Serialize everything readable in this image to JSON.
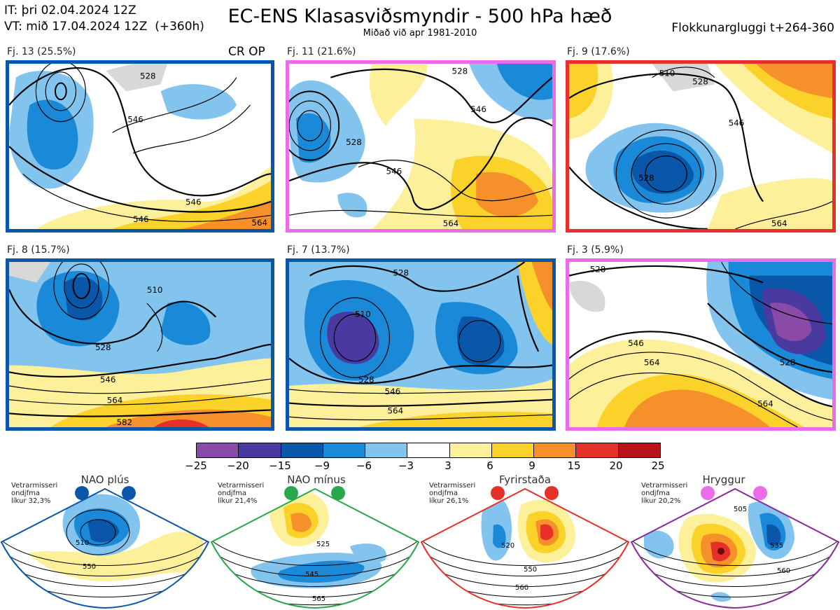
{
  "header": {
    "init_time": "IT: þri 02.04.2024 12Z",
    "valid_time": "VT: mið 17.04.2024 12Z  (+360h)",
    "title": "EC-ENS Klasasviðsmyndir - 500 hPa hæð",
    "subtitle": "Miðað við apr 1981-2010",
    "window": "Flokkunargluggi t+264-360"
  },
  "clusters": [
    {
      "label": "Fj. 13 (25.5%)",
      "tag": "CR OP",
      "border": "#0a56a8",
      "contours": [
        "528",
        "546",
        "546",
        "546",
        "564"
      ]
    },
    {
      "label": "Fj. 11 (21.6%)",
      "tag": "",
      "border": "#ea6cea",
      "contours": [
        "528",
        "528",
        "546",
        "546",
        "564"
      ]
    },
    {
      "label": "Fj. 9 (17.6%)",
      "tag": "",
      "border": "#e8302a",
      "contours": [
        "510",
        "528",
        "546",
        "528",
        "564"
      ]
    },
    {
      "label": "Fj. 8 (15.7%)",
      "tag": "",
      "border": "#0a56a8",
      "contours": [
        "510",
        "528",
        "546",
        "564",
        "582"
      ]
    },
    {
      "label": "Fj. 7 (13.7%)",
      "tag": "",
      "border": "#0a56a8",
      "contours": [
        "510",
        "528",
        "528",
        "546",
        "564"
      ]
    },
    {
      "label": "Fj. 3 (5.9%)",
      "tag": "",
      "border": "#ea6cea",
      "contours": [
        "528",
        "546",
        "564",
        "528",
        "564"
      ]
    }
  ],
  "colorbar": {
    "labels": [
      "−25",
      "−20",
      "−15",
      "−9",
      "−6",
      "−3",
      "3",
      "6",
      "9",
      "15",
      "20",
      "25"
    ],
    "colors": [
      "#8a4aa8",
      "#4a3aa0",
      "#0a56a8",
      "#1a8ad8",
      "#82c4ee",
      "#ffffff",
      "#fdf09a",
      "#fbd22a",
      "#f5902a",
      "#e8302a",
      "#b8121a"
    ]
  },
  "regimes": [
    {
      "name": "NAO plús",
      "note": [
        "Vetrarmisseri",
        "ondjfma",
        "líkur 32,3%"
      ],
      "color": "#0a56a8",
      "contours": [
        "510",
        "550"
      ]
    },
    {
      "name": "NAO mínus",
      "note": [
        "Vetrarmisseri",
        "ondjfma",
        "líkur 21,4%"
      ],
      "color": "#28a84a",
      "contours": [
        "525",
        "545",
        "565"
      ]
    },
    {
      "name": "Fyrirstaða",
      "note": [
        "Vetrarmisseri",
        "ondjfma",
        "líkur 26,1%"
      ],
      "color": "#e8302a",
      "contours": [
        "520",
        "550",
        "560"
      ]
    },
    {
      "name": "Hryggur",
      "note": [
        "Vetrarmisseri",
        "ondjfma",
        "líkur 20,2%"
      ],
      "color": "#ea6cea",
      "contours": [
        "505",
        "535",
        "560"
      ]
    }
  ]
}
